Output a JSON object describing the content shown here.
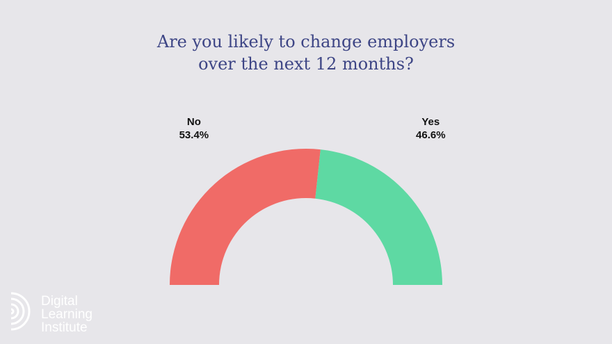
{
  "chart_data": {
    "type": "pie",
    "variant": "semi-donut",
    "title_lines": [
      "Are you likely to change employers",
      "over the next 12 months?"
    ],
    "slices": [
      {
        "label": "No",
        "value": 53.4,
        "value_label": "53.4%",
        "color": "#f06b67"
      },
      {
        "label": "Yes",
        "value": 46.6,
        "value_label": "46.6%",
        "color": "#5ed9a3"
      }
    ]
  },
  "logo": {
    "lines": [
      "Digital",
      "Learning",
      "Institute"
    ],
    "color": "#ffffff"
  },
  "colors": {
    "background": "#e7e6ea",
    "title": "#3d4585",
    "label": "#111111"
  }
}
